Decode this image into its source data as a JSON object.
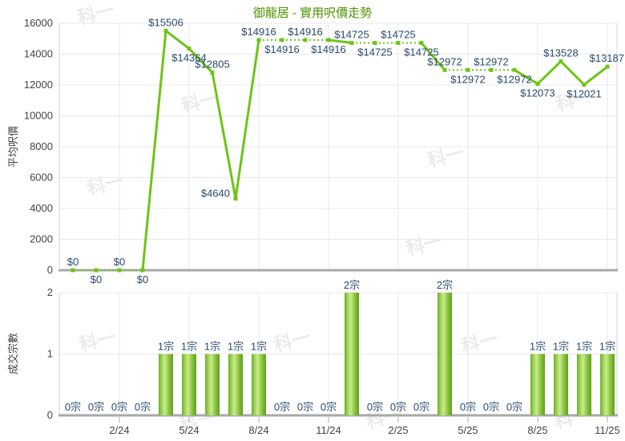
{
  "title": "御龍居 - 實用呎價走勢",
  "watermark_text": "科一",
  "colors": {
    "title": "#4a9400",
    "line": "#6ec417",
    "marker": "#6ec417",
    "data_label": "#274a6d",
    "axis_text": "#444444",
    "axis_line": "#a9a9a9",
    "grid": "#e8e8e8",
    "plot_border": "#d4d4d4",
    "watermark": "#ebebeb",
    "bar_gradient": [
      "#6fae2a",
      "#a6d95e",
      "#c9ec8e",
      "#8cc63f",
      "#5f9e22"
    ]
  },
  "chart_data": [
    {
      "type": "line",
      "name": "average-price-per-sqft-trend",
      "title": "御龍居 - 實用呎價走勢",
      "ylabel": "平均呎價",
      "ylim": [
        0,
        16000
      ],
      "yticks": [
        0,
        2000,
        4000,
        6000,
        8000,
        10000,
        12000,
        14000,
        16000
      ],
      "xtick_labels": [
        "2/24",
        "5/24",
        "8/24",
        "11/24",
        "2/25",
        "5/25",
        "8/25",
        "11/25"
      ],
      "xtick_index": [
        2,
        5,
        8,
        11,
        14,
        17,
        20,
        23
      ],
      "grid": true,
      "values": [
        0,
        0,
        0,
        0,
        15506,
        14364,
        12805,
        4640,
        14916,
        14916,
        14916,
        14916,
        14725,
        14725,
        14725,
        14725,
        12972,
        12972,
        12972,
        12972,
        12073,
        13528,
        12021,
        13187
      ],
      "point_labels": [
        "$0",
        "$0",
        "$0",
        "$0",
        "$15506",
        "$14364",
        "$12805",
        "$4640",
        "$14916",
        "$14916",
        "$14916",
        "$14916",
        "$14725",
        "$14725",
        "$14725",
        "$14725",
        "$12972",
        "$12972",
        "$12972",
        "$12972",
        "$12073",
        "$13528",
        "$12021",
        "$13187"
      ],
      "label_side": [
        "above",
        "below",
        "above",
        "below",
        "above",
        "below",
        "above",
        "left",
        "above",
        "below",
        "above",
        "below",
        "above",
        "below",
        "above",
        "below",
        "above",
        "below",
        "above",
        "below",
        "below",
        "above",
        "below",
        "above"
      ],
      "dotted_segments": [
        [
          0,
          1
        ],
        [
          1,
          2
        ],
        [
          2,
          3
        ],
        [
          8,
          9
        ],
        [
          9,
          10
        ],
        [
          10,
          11
        ],
        [
          12,
          13
        ],
        [
          13,
          14
        ],
        [
          14,
          15
        ],
        [
          16,
          17
        ],
        [
          17,
          18
        ],
        [
          18,
          19
        ]
      ]
    },
    {
      "type": "bar",
      "name": "transaction-count",
      "ylabel": "成交宗數",
      "ylim": [
        0,
        2
      ],
      "yticks": [
        0,
        1,
        2
      ],
      "xtick_labels": [
        "2/24",
        "5/24",
        "8/24",
        "11/24",
        "2/25",
        "5/25",
        "8/25",
        "11/25"
      ],
      "xtick_index": [
        2,
        5,
        8,
        11,
        14,
        17,
        20,
        23
      ],
      "grid": true,
      "values": [
        0,
        0,
        0,
        0,
        1,
        1,
        1,
        1,
        1,
        0,
        0,
        0,
        2,
        0,
        0,
        0,
        2,
        0,
        0,
        0,
        1,
        1,
        1,
        1
      ],
      "point_labels": [
        "0宗",
        "0宗",
        "0宗",
        "0宗",
        "1宗",
        "1宗",
        "1宗",
        "1宗",
        "1宗",
        "0宗",
        "0宗",
        "0宗",
        "2宗",
        "0宗",
        "0宗",
        "0宗",
        "2宗",
        "0宗",
        "0宗",
        "0宗",
        "1宗",
        "1宗",
        "1宗",
        "1宗"
      ]
    }
  ]
}
